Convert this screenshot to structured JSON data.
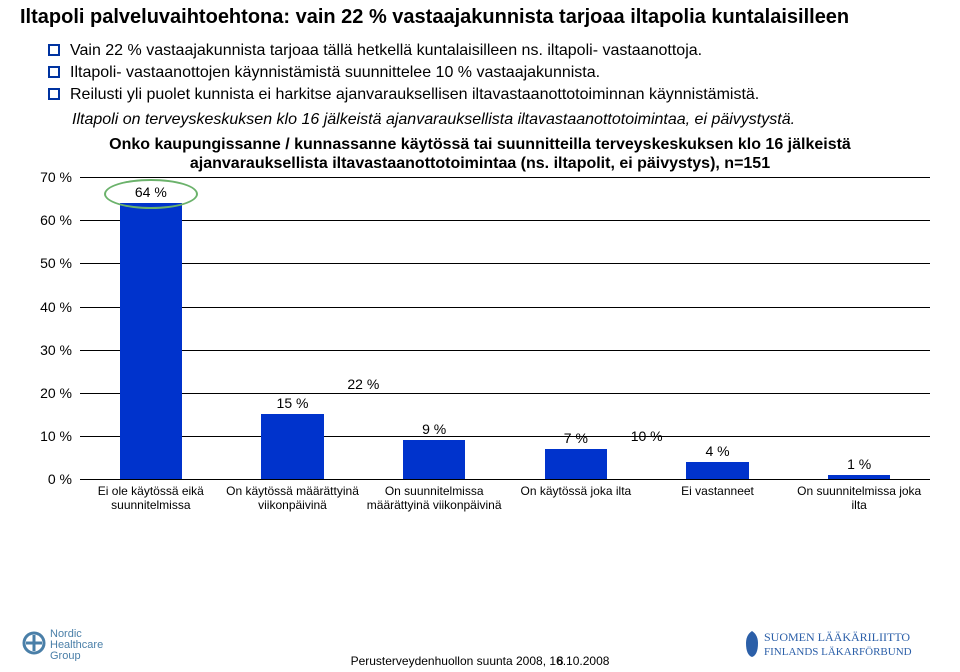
{
  "title": "Iltapoli palveluvaihtoehtona: vain 22 % vastaajakunnista tarjoaa iltapolia kuntalaisilleen",
  "bullets": [
    "Vain 22 % vastaajakunnista tarjoaa tällä hetkellä kuntalaisilleen ns. iltapoli- vastaanottoja.",
    "Iltapoli- vastaanottojen käynnistämistä suunnittelee 10 % vastaajakunnista.",
    "Reilusti yli puolet kunnista ei harkitse ajanvarauksellisen iltavastaanottotoiminnan käynnistämistä."
  ],
  "italic_line": "Iltapoli on terveyskeskuksen klo 16 jälkeistä ajanvarauksellista iltavastaanottotoimintaa, ei päivystystä.",
  "subheading": "Onko kaupungissanne / kunnassanne käytössä tai suunnitteilla terveyskeskuksen klo 16 jälkeistä ajanvarauksellista iltavastaanottotoimintaa (ns. iltapolit, ei päivystys), n=151",
  "chart": {
    "type": "bar",
    "y_max": 70,
    "y_tick_step": 10,
    "y_suffix": " %",
    "bar_color": "#0033cc",
    "grid_color": "#000000",
    "background_color": "#ffffff",
    "label_fontsize": 14,
    "axis_fontsize": 12,
    "categories": [
      "Ei ole käytössä eikä suunnitelmissa",
      "On käytössä määrättyinä viikonpäivinä",
      "On suunnitelmissa määrättyinä viikonpäivinä",
      "On käytössä joka ilta",
      "Ei vastanneet",
      "On suunnitelmissa joka ilta"
    ],
    "values": [
      64,
      15,
      9,
      7,
      4,
      1
    ],
    "annotations": {
      "ellipse_on_bar": {
        "bar_index": 0,
        "color": "#6bb26b"
      },
      "between_labels": [
        {
          "between": [
            1,
            2
          ],
          "y": 22,
          "text": "22 %"
        },
        {
          "between": [
            3,
            4
          ],
          "y": 10,
          "text": "10 %"
        }
      ]
    }
  },
  "footer": {
    "center": "Perusterveydenhuollon suunta 2008, 16.10.2008",
    "page": "8",
    "logo_left_lines": [
      "Nordic",
      "Healthcare",
      "Group"
    ],
    "logo_left_color": "#4a7fa8",
    "logo_right_top": "SUOMEN LÄÄKÄRILIITTO",
    "logo_right_bottom": "FINLANDS LÄKARFÖRBUND",
    "logo_right_color": "#2b5fa8"
  }
}
